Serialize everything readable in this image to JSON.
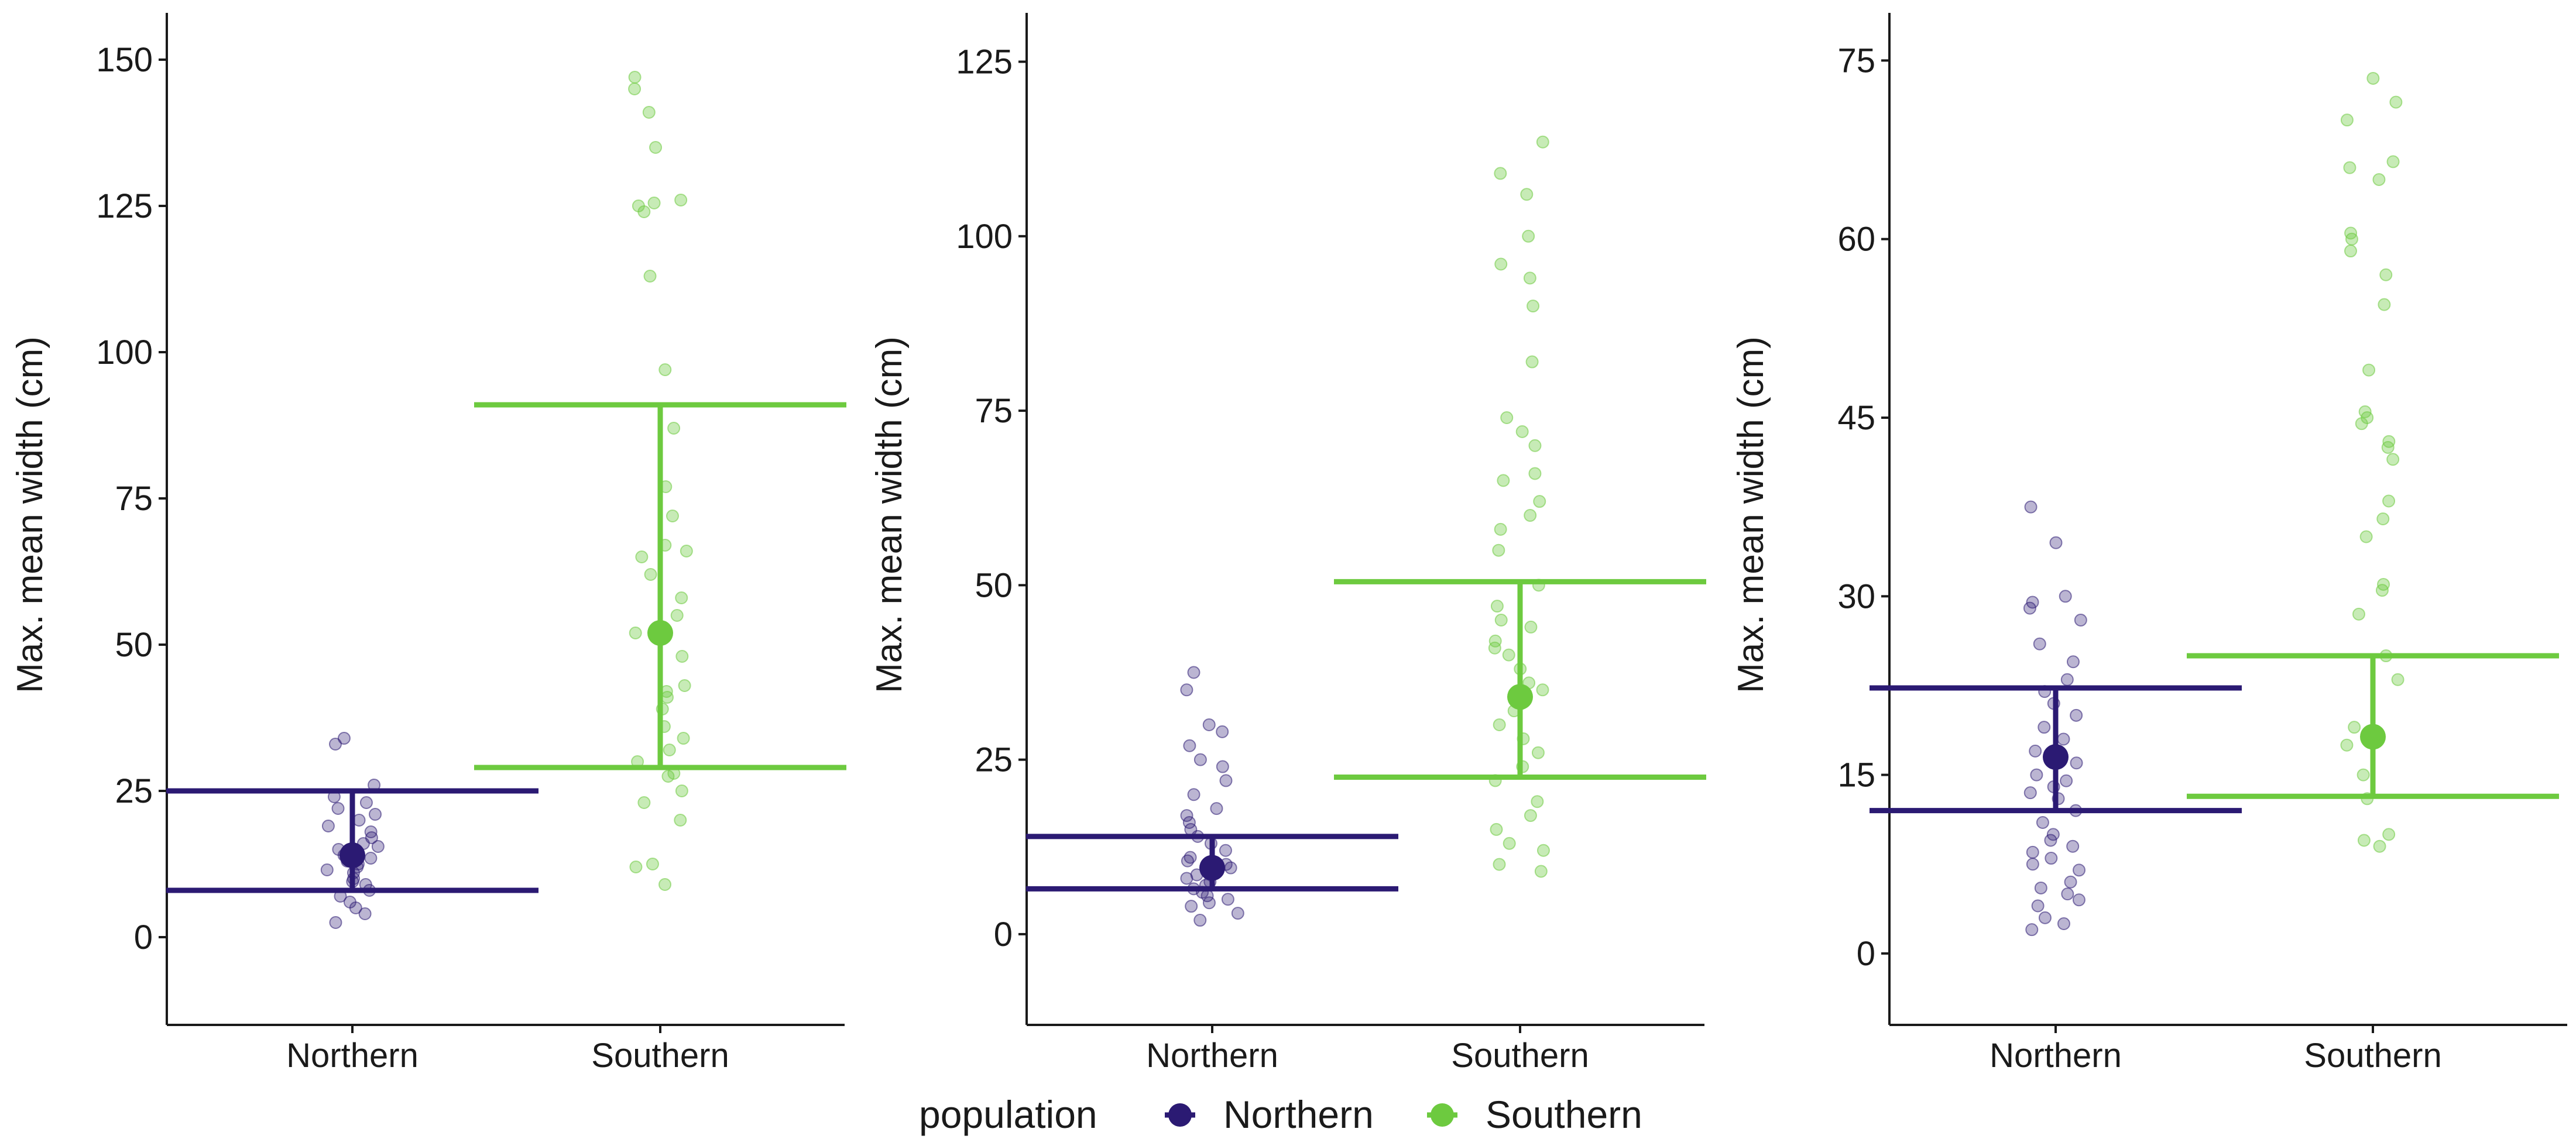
{
  "colors": {
    "Northern": "#2b1a73",
    "Southern": "#6dca3f",
    "axis": "#1a1a1a"
  },
  "legend": {
    "title": "population",
    "items": [
      {
        "label": "Northern",
        "color": "#2b1a73"
      },
      {
        "label": "Southern",
        "color": "#6dca3f"
      }
    ]
  },
  "chart_data": [
    {
      "type": "scatter",
      "ylabel": "Max. mean width (cm)",
      "xlabel": "",
      "categories": [
        "Northern",
        "Southern"
      ],
      "ylim": [
        -15,
        158
      ],
      "yticks": [
        0,
        25,
        50,
        75,
        100,
        125,
        150
      ],
      "groups": [
        {
          "name": "Northern",
          "mean": 14,
          "lower": 8,
          "upper": 25,
          "points": [
            2.5,
            4,
            5,
            6,
            7,
            8,
            9,
            9.5,
            10,
            11,
            11.5,
            12,
            12.5,
            13,
            13.5,
            14,
            14.5,
            15,
            15.5,
            16,
            17,
            18,
            19,
            20,
            21,
            22,
            23,
            24,
            26,
            33,
            34
          ]
        },
        {
          "name": "Southern",
          "mean": 52,
          "lower": 29,
          "upper": 91,
          "points": [
            9,
            12,
            12.5,
            20,
            23,
            25,
            27.5,
            28,
            30,
            32,
            34,
            36,
            39,
            41,
            42,
            43,
            48,
            52,
            55,
            58,
            62,
            65,
            66,
            67,
            72,
            77,
            87,
            97,
            113,
            124,
            125,
            125.5,
            126,
            135,
            141,
            145,
            147
          ]
        }
      ]
    },
    {
      "type": "scatter",
      "ylabel": "Max. mean width (cm)",
      "xlabel": "",
      "categories": [
        "Northern",
        "Southern"
      ],
      "ylim": [
        -13,
        132
      ],
      "yticks": [
        0,
        25,
        50,
        75,
        100,
        125
      ],
      "groups": [
        {
          "name": "Northern",
          "mean": 9.5,
          "lower": 6.5,
          "upper": 14,
          "points": [
            2,
            3,
            4,
            4.5,
            5,
            5.5,
            6,
            6.5,
            7,
            7.5,
            8,
            8.5,
            9,
            9.5,
            10,
            10.5,
            11,
            12,
            13,
            14,
            15,
            16,
            17,
            18,
            20,
            22,
            24,
            25,
            27,
            29,
            30,
            35,
            37.5
          ]
        },
        {
          "name": "Southern",
          "mean": 34,
          "lower": 22.5,
          "upper": 50.5,
          "points": [
            9,
            10,
            12,
            13,
            15,
            17,
            19,
            22,
            24,
            26,
            28,
            30,
            32,
            33,
            35,
            36,
            38,
            40,
            41,
            42,
            44,
            45,
            47,
            50,
            55,
            58,
            60,
            62,
            65,
            66,
            70,
            72,
            74,
            82,
            90,
            94,
            96,
            100,
            106,
            109,
            113.5
          ]
        }
      ]
    },
    {
      "type": "scatter",
      "ylabel": "Max. mean width (cm)",
      "xlabel": "",
      "categories": [
        "Northern",
        "Southern"
      ],
      "ylim": [
        -6,
        79
      ],
      "yticks": [
        0,
        15,
        30,
        45,
        60,
        75
      ],
      "groups": [
        {
          "name": "Northern",
          "mean": 16.5,
          "lower": 12,
          "upper": 22.3,
          "points": [
            2,
            2.5,
            3,
            4,
            4.5,
            5,
            5.5,
            6,
            7,
            7.5,
            8,
            8.5,
            9,
            9.5,
            10,
            11,
            12,
            13,
            13.5,
            14,
            14.5,
            15,
            16,
            17,
            18,
            19,
            20,
            21,
            22,
            23,
            24.5,
            26,
            28,
            29,
            29.5,
            30,
            34.5,
            37.5
          ]
        },
        {
          "name": "Southern",
          "mean": 18.2,
          "lower": 13.2,
          "upper": 25,
          "points": [
            9,
            9.5,
            10,
            13,
            15,
            17.5,
            19,
            23,
            25,
            28.5,
            30.5,
            31,
            35,
            36.5,
            38,
            41.5,
            42.5,
            43,
            44.5,
            45,
            45.5,
            49,
            54.5,
            57,
            59,
            60,
            60.5,
            65,
            66,
            66.5,
            70,
            71.5,
            73.5
          ]
        }
      ]
    }
  ]
}
